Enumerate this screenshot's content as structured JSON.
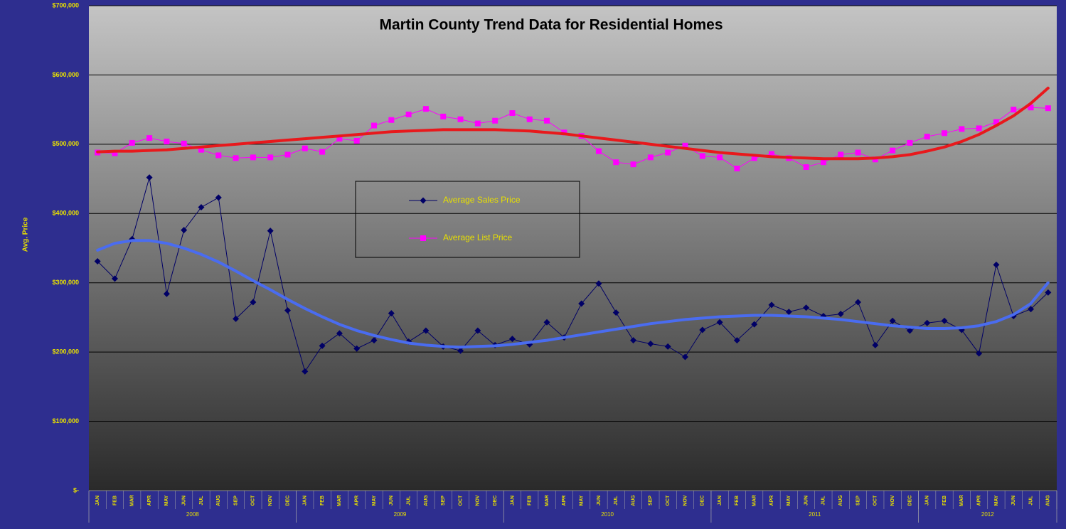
{
  "chart_data": {
    "type": "line",
    "title": "Martin County Trend Data for Residential Homes",
    "y_label": "Avg. Price",
    "categories": [
      "JAN",
      "FEB",
      "MAR",
      "APR",
      "MAY",
      "JUN",
      "JUL",
      "AUG",
      "SEP",
      "OCT",
      "NOV",
      "DEC",
      "JAN",
      "FEB",
      "MAR",
      "APR",
      "MAY",
      "JUN",
      "JUL",
      "AUG",
      "SEP",
      "OCT",
      "NOV",
      "DEC",
      "JAN",
      "FEB",
      "MAR",
      "APR",
      "MAY",
      "JUN",
      "JUL",
      "AUG",
      "SEP",
      "OCT",
      "NOV",
      "DEC",
      "JAN",
      "FEB",
      "MAR",
      "APR",
      "MAY",
      "JUN",
      "JUL",
      "AUG",
      "SEP",
      "OCT",
      "NOV",
      "DEC",
      "JAN",
      "FEB",
      "MAR",
      "APR",
      "MAY",
      "JUN",
      "JUL",
      "AUG"
    ],
    "years": [
      "2008",
      "2009",
      "2010",
      "2011",
      "2012"
    ],
    "series": [
      {
        "name": "Average Sales Price",
        "color": "#000066",
        "marker": "diamond",
        "values": [
          331000,
          306000,
          363000,
          452000,
          284000,
          376000,
          409000,
          423000,
          248000,
          272000,
          375000,
          260000,
          172000,
          209000,
          227000,
          205000,
          217000,
          256000,
          215000,
          231000,
          208000,
          202000,
          231000,
          210000,
          219000,
          211000,
          243000,
          221000,
          270000,
          299000,
          257000,
          217000,
          212000,
          208000,
          193000,
          232000,
          243000,
          217000,
          240000,
          268000,
          258000,
          264000,
          252000,
          255000,
          272000,
          210000,
          245000,
          231000,
          242000,
          245000,
          232000,
          198000,
          326000,
          252000,
          262000,
          286000
        ],
        "trend_color": "#4a6cf0",
        "trend": [
          347000,
          357000,
          361000,
          361000,
          357000,
          350000,
          341000,
          330000,
          317000,
          303000,
          290000,
          276000,
          263000,
          251000,
          240000,
          231000,
          224000,
          218000,
          213000,
          210000,
          208000,
          207000,
          208000,
          209000,
          211000,
          214000,
          217000,
          221000,
          225000,
          229000,
          233000,
          237000,
          241000,
          244000,
          247000,
          249000,
          251000,
          252000,
          253000,
          253000,
          252000,
          251000,
          249000,
          247000,
          244000,
          241000,
          238000,
          236000,
          234000,
          234000,
          235000,
          238000,
          244000,
          254000,
          270000,
          300000
        ]
      },
      {
        "name": "Average List Price",
        "color": "#ff00ff",
        "marker": "square",
        "values": [
          488000,
          487000,
          502000,
          509000,
          504000,
          501000,
          492000,
          484000,
          480000,
          481000,
          481000,
          485000,
          494000,
          489000,
          508000,
          505000,
          527000,
          535000,
          543000,
          551000,
          540000,
          536000,
          530000,
          534000,
          545000,
          536000,
          534000,
          517000,
          512000,
          490000,
          474000,
          471000,
          481000,
          488000,
          498000,
          483000,
          481000,
          465000,
          480000,
          486000,
          480000,
          467000,
          474000,
          485000,
          488000,
          478000,
          491000,
          502000,
          511000,
          516000,
          522000,
          523000,
          532000,
          550000,
          553000,
          552000
        ],
        "trend_color": "#e8191c",
        "trend": [
          489000,
          490000,
          490000,
          491000,
          492000,
          494000,
          496000,
          498000,
          500000,
          502000,
          504000,
          506000,
          508000,
          510000,
          512000,
          514000,
          516000,
          518000,
          519000,
          520000,
          521000,
          521000,
          521000,
          521000,
          520000,
          519000,
          517000,
          515000,
          512000,
          509000,
          506000,
          503000,
          500000,
          497000,
          494000,
          491000,
          488000,
          486000,
          484000,
          482000,
          481000,
          480000,
          479000,
          479000,
          479000,
          480000,
          482000,
          485000,
          490000,
          496000,
          504000,
          514000,
          527000,
          541000,
          559000,
          581000
        ]
      }
    ],
    "ylim": [
      0,
      700000
    ],
    "yticks": [
      {
        "value": 0,
        "label": "$-"
      },
      {
        "value": 100000,
        "label": "$100,000"
      },
      {
        "value": 200000,
        "label": "$200,000"
      },
      {
        "value": 300000,
        "label": "$300,000"
      },
      {
        "value": 400000,
        "label": "$400,000"
      },
      {
        "value": 500000,
        "label": "$500,000"
      },
      {
        "value": 600000,
        "label": "$600,000"
      },
      {
        "value": 700000,
        "label": "$700,000"
      }
    ],
    "grid": true
  }
}
